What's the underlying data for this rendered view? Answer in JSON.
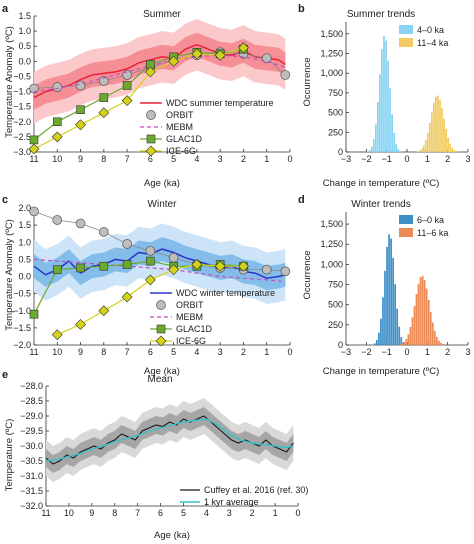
{
  "colors": {
    "wdc_summer": "#e8223a",
    "summer_band_outer": "#fbc9c9",
    "summer_band_inner": "#f58f95",
    "wdc_winter": "#2a33c8",
    "winter_band_outer": "#cde3f7",
    "winter_band_inner": "#84bde9",
    "orbit": "#bdbdbd",
    "mebm": "#c64fc6",
    "glac1d": "#6aab2f",
    "ice6g": "#d2d219",
    "hist_a": "#8ad3f2",
    "hist_b": "#f2cb61",
    "hist_c": "#3f8fc7",
    "hist_d": "#ec8a56",
    "mean_outer": "#d9d9d9",
    "mean_inner": "#a6a6a6",
    "mean_line": "#1a1a1a",
    "kyr_line": "#37c0c8"
  },
  "panels": {
    "a": {
      "letter": "a",
      "title": "Summer"
    },
    "b": {
      "letter": "b",
      "title": "Summer trends"
    },
    "c": {
      "letter": "c",
      "title": "Winter"
    },
    "d": {
      "letter": "d",
      "title": "Winter trends"
    },
    "e": {
      "letter": "e",
      "title": "Mean"
    }
  },
  "axis_labels": {
    "temp_anomaly": "Temperature Anomaly (ºC)",
    "age": "Age (ka)",
    "occurrence": "Occurrence",
    "change": "Change in temperature (ºC)",
    "temperature": "Temperature (ºC)"
  },
  "legends": {
    "a": [
      "WDC summer temperature",
      "ORBIT",
      "MEBM",
      "GLAC1D",
      "ICE-6G"
    ],
    "b": [
      "4–0 ka",
      "11–4 ka"
    ],
    "c": [
      "WDC winter temperature",
      "ORBIT",
      "MEBM",
      "GLAC1D",
      "ICE-6G"
    ],
    "d": [
      "6–0 ka",
      "11–6 ka"
    ],
    "e": [
      "Cuffey et al. 2016 (ref. 30)",
      "1 kyr average"
    ]
  },
  "chart_data": [
    {
      "id": "a",
      "type": "line",
      "title": "Summer",
      "xlabel": "Age (ka)",
      "ylabel": "Temperature Anomaly (ºC)",
      "xlim": [
        11,
        0
      ],
      "ylim": [
        -3.0,
        1.5
      ],
      "x_reversed": true,
      "xticks": [
        11,
        10,
        9,
        8,
        7,
        6,
        5,
        4,
        3,
        2,
        1,
        0
      ],
      "yticks": [
        -3.0,
        -2.5,
        -2.0,
        -1.5,
        -1.0,
        -0.5,
        0,
        0.5,
        1.0,
        1.5
      ],
      "series": [
        {
          "name": "WDC summer temperature",
          "style": "line_with_bands",
          "x": [
            11,
            10.5,
            10,
            9.5,
            9,
            8.5,
            8,
            7.5,
            7,
            6.5,
            6,
            5.5,
            5,
            4.5,
            4,
            3.5,
            3,
            2.5,
            2,
            1.5,
            1,
            0.5,
            0.2
          ],
          "y": [
            -1.2,
            -1.0,
            -0.9,
            -0.8,
            -0.6,
            -0.45,
            -0.4,
            -0.35,
            -0.25,
            -0.05,
            0.05,
            0.15,
            0.1,
            0.4,
            0.55,
            0.4,
            0.25,
            0.2,
            0.35,
            0.15,
            0.1,
            0.05,
            -0.1
          ],
          "band_inner": 0.4,
          "band_outer": 0.85
        },
        {
          "name": "ORBIT",
          "style": "markers_circle",
          "x": [
            11,
            10,
            9,
            8,
            7,
            6,
            5,
            4,
            3,
            2,
            1,
            0.2
          ],
          "y": [
            -0.9,
            -0.85,
            -0.8,
            -0.65,
            -0.45,
            -0.2,
            0.05,
            0.2,
            0.3,
            0.25,
            0.1,
            -0.45
          ]
        },
        {
          "name": "MEBM",
          "style": "dashed",
          "x": [
            11,
            10,
            9,
            8,
            7,
            6,
            5,
            4,
            3,
            2,
            1,
            0.2
          ],
          "y": [
            -1.0,
            -0.9,
            -0.75,
            -0.55,
            -0.35,
            -0.15,
            0.05,
            0.15,
            0.2,
            0.15,
            0.0,
            -0.2
          ]
        },
        {
          "name": "GLAC1D",
          "style": "markers_square",
          "x": [
            11,
            10,
            9,
            8,
            7,
            6,
            5,
            4,
            3,
            2
          ],
          "y": [
            -2.6,
            -2.0,
            -1.6,
            -1.2,
            -0.8,
            -0.1,
            0.15,
            0.3,
            0.25,
            0.4
          ]
        },
        {
          "name": "ICE-6G",
          "style": "markers_diamond",
          "x": [
            11,
            10,
            9,
            8,
            7,
            6,
            5,
            4,
            3,
            2
          ],
          "y": [
            -2.9,
            -2.5,
            -2.1,
            -1.7,
            -1.3,
            -0.35,
            0.0,
            0.25,
            0.2,
            0.45
          ]
        }
      ]
    },
    {
      "id": "b",
      "type": "histogram",
      "title": "Summer trends",
      "xlabel": "Change in temperature (ºC)",
      "ylabel": "Occurrence",
      "xlim": [
        -3,
        3
      ],
      "ylim": [
        0,
        1650
      ],
      "xticks": [
        -3,
        -2,
        -1,
        0,
        1,
        2,
        3
      ],
      "yticks": [
        0,
        250,
        500,
        750,
        1000,
        1250,
        1500
      ],
      "series": [
        {
          "name": "4–0 ka",
          "mean": -1.1,
          "sd": 0.25,
          "peak": 1480
        },
        {
          "name": "11–4 ka",
          "mean": 1.5,
          "sd": 0.32,
          "peak": 720
        }
      ]
    },
    {
      "id": "c",
      "type": "line",
      "title": "Winter",
      "xlabel": "Age (ka)",
      "ylabel": "Temperature Anomaly (ºC)",
      "xlim": [
        11,
        0
      ],
      "ylim": [
        -2.0,
        2.0
      ],
      "x_reversed": true,
      "xticks": [
        11,
        10,
        9,
        8,
        7,
        6,
        5,
        4,
        3,
        2,
        1,
        0
      ],
      "yticks": [
        -2.0,
        -1.5,
        -1.0,
        -0.5,
        0,
        0.5,
        1.0,
        1.5,
        2.0
      ],
      "series": [
        {
          "name": "WDC winter temperature",
          "style": "line_with_bands",
          "x": [
            11,
            10.5,
            10,
            9.5,
            9,
            8.5,
            8,
            7.5,
            7,
            6.5,
            6,
            5.5,
            5,
            4.5,
            4,
            3.5,
            3,
            2.5,
            2,
            1.5,
            1,
            0.5,
            0.2
          ],
          "y": [
            0.3,
            0.05,
            0.2,
            0.45,
            0.1,
            0.3,
            0.35,
            0.5,
            0.45,
            0.7,
            0.65,
            0.8,
            0.7,
            0.55,
            0.45,
            0.35,
            0.25,
            0.3,
            0.15,
            0.1,
            -0.05,
            0.0,
            0.05
          ],
          "band_inner": 0.35,
          "band_outer": 0.75
        },
        {
          "name": "ORBIT",
          "style": "markers_circle",
          "x": [
            11,
            10,
            9,
            8,
            7,
            6,
            5,
            4,
            3,
            2,
            1,
            0.2
          ],
          "y": [
            1.9,
            1.65,
            1.55,
            1.3,
            0.95,
            0.75,
            0.55,
            0.35,
            0.25,
            0.2,
            0.2,
            0.15
          ]
        },
        {
          "name": "MEBM",
          "style": "dashed",
          "x": [
            11,
            10,
            9,
            8,
            7,
            6,
            5,
            4,
            3,
            2,
            1,
            0.2
          ],
          "y": [
            0.5,
            0.45,
            0.4,
            0.35,
            0.3,
            0.25,
            0.2,
            0.1,
            0.0,
            -0.05,
            -0.1,
            -0.15
          ]
        },
        {
          "name": "GLAC1D",
          "style": "markers_square",
          "x": [
            11,
            10,
            9,
            8,
            7,
            6,
            5,
            4,
            3,
            2
          ],
          "y": [
            -1.1,
            0.2,
            0.25,
            0.3,
            0.35,
            0.45,
            0.3,
            0.3,
            0.35,
            0.3
          ]
        },
        {
          "name": "ICE-6G",
          "style": "markers_diamond",
          "x": [
            10,
            9,
            8,
            7,
            6,
            5,
            4,
            3,
            2
          ],
          "y": [
            -1.7,
            -1.4,
            -1.0,
            -0.6,
            -0.1,
            0.2,
            0.35,
            0.3,
            0.3
          ]
        }
      ]
    },
    {
      "id": "d",
      "type": "histogram",
      "title": "Winter trends",
      "xlabel": "Change in temperature (ºC)",
      "ylabel": "Occurrence",
      "xlim": [
        -3,
        3
      ],
      "ylim": [
        0,
        1650
      ],
      "xticks": [
        -3,
        -2,
        -1,
        0,
        1,
        2,
        3
      ],
      "yticks": [
        0,
        250,
        500,
        750,
        1000,
        1250,
        1500
      ],
      "series": [
        {
          "name": "6–0 ka",
          "mean": -0.85,
          "sd": 0.25,
          "peak": 1380
        },
        {
          "name": "11–6 ka",
          "mean": 0.75,
          "sd": 0.35,
          "peak": 860
        }
      ]
    },
    {
      "id": "e",
      "type": "line",
      "title": "Mean",
      "xlabel": "Age (ka)",
      "ylabel": "Temperature (ºC)",
      "xlim": [
        11,
        0
      ],
      "ylim": [
        -32.0,
        -28.0
      ],
      "x_reversed": true,
      "xticks": [
        11,
        10,
        9,
        8,
        7,
        6,
        5,
        4,
        3,
        2,
        1,
        0
      ],
      "yticks": [
        -32.0,
        -31.5,
        -31.0,
        -30.5,
        -30.0,
        -29.5,
        -29.0,
        -28.5,
        -28.0
      ],
      "series": [
        {
          "name": "Cuffey et al. 2016 (ref. 30)",
          "style": "line_with_bands",
          "x": [
            11,
            10.7,
            10.4,
            10.1,
            9.8,
            9.5,
            9.2,
            8.9,
            8.6,
            8.3,
            8.0,
            7.7,
            7.4,
            7.1,
            6.8,
            6.5,
            6.2,
            5.9,
            5.6,
            5.3,
            5.0,
            4.7,
            4.4,
            4.1,
            3.8,
            3.5,
            3.2,
            2.9,
            2.6,
            2.3,
            2.0,
            1.7,
            1.4,
            1.1,
            0.8,
            0.5,
            0.2
          ],
          "y": [
            -30.4,
            -30.6,
            -30.5,
            -30.3,
            -30.4,
            -30.2,
            -30.1,
            -30.0,
            -30.1,
            -29.9,
            -29.8,
            -29.6,
            -29.7,
            -29.8,
            -29.5,
            -29.4,
            -29.3,
            -29.35,
            -29.2,
            -29.3,
            -29.1,
            -29.2,
            -29.1,
            -29.0,
            -29.2,
            -29.4,
            -29.6,
            -29.8,
            -29.9,
            -29.8,
            -29.9,
            -30.0,
            -29.8,
            -30.0,
            -30.1,
            -30.2,
            -29.9
          ],
          "band_inner": 0.3,
          "band_outer": 0.6
        },
        {
          "name": "1 kyr average",
          "style": "line",
          "x": [
            11,
            10.5,
            10,
            9.5,
            9,
            8.5,
            8,
            7.5,
            7,
            6.5,
            6,
            5.5,
            5,
            4.5,
            4,
            3.5,
            3,
            2.5,
            2,
            1.5,
            1,
            0.5,
            0.2
          ],
          "y": [
            -30.5,
            -30.45,
            -30.35,
            -30.25,
            -30.1,
            -30.0,
            -29.85,
            -29.75,
            -29.65,
            -29.5,
            -29.4,
            -29.3,
            -29.2,
            -29.15,
            -29.1,
            -29.3,
            -29.6,
            -29.8,
            -29.9,
            -29.95,
            -30.0,
            -30.05,
            -30.0
          ]
        }
      ]
    }
  ]
}
